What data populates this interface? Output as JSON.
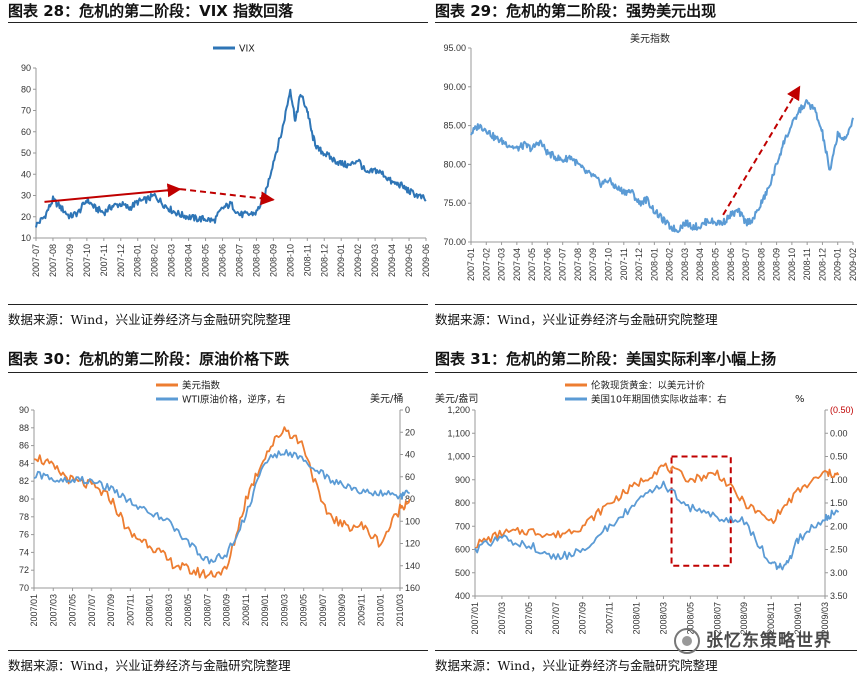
{
  "panels": [
    {
      "title": "图表 28：危机的第二阶段：VIX 指数回落",
      "source": "数据来源：Wind，兴业证券经济与金融研究院整理"
    },
    {
      "title": "图表 29：危机的第二阶段：强势美元出现",
      "source": "数据来源：Wind，兴业证券经济与金融研究院整理"
    },
    {
      "title": "图表 30：危机的第二阶段：原油价格下跌",
      "source": "数据来源：Wind，兴业证券经济与金融研究院整理"
    },
    {
      "title": "图表 31：危机的第二阶段：美国实际利率小幅上扬",
      "source": "数据来源：Wind，兴业证券经济与金融研究院整理"
    }
  ],
  "watermark": "张忆东策略世界",
  "chart_data": [
    {
      "type": "line",
      "legend": [
        "VIX"
      ],
      "y_ticks": [
        "10",
        "20",
        "30",
        "40",
        "50",
        "60",
        "70",
        "80",
        "90"
      ],
      "ylim": [
        10,
        90
      ],
      "x_ticks": [
        "2007-07",
        "2007-08",
        "2007-09",
        "2007-10",
        "2007-11",
        "2007-12",
        "2008-01",
        "2008-02",
        "2008-03",
        "2008-04",
        "2008-05",
        "2008-06",
        "2008-07",
        "2008-08",
        "2008-09",
        "2008-10",
        "2008-11",
        "2008-12",
        "2009-01",
        "2009-02",
        "2009-03",
        "2009-04",
        "2009-05",
        "2009-06"
      ],
      "series": [
        {
          "name": "VIX",
          "color": "#2e75b6",
          "x": [
            0,
            0.5,
            1,
            1.5,
            2,
            2.5,
            3,
            3.5,
            4,
            4.5,
            5,
            5.5,
            6,
            6.5,
            7,
            7.5,
            8,
            8.5,
            9,
            9.5,
            10,
            10.5,
            11,
            11.5,
            12,
            12.5,
            13,
            13.5,
            14,
            14.5,
            15,
            15.3,
            15.6,
            16,
            16.3,
            16.6,
            17,
            17.5,
            18,
            18.5,
            19,
            19.5,
            20,
            20.5,
            21,
            21.5,
            22,
            22.5,
            23
          ],
          "values": [
            16,
            20,
            28,
            24,
            20,
            22,
            28,
            24,
            22,
            25,
            26,
            24,
            27,
            28,
            30,
            26,
            23,
            21,
            20,
            19,
            19,
            18,
            24,
            26,
            21,
            21,
            22,
            30,
            46,
            60,
            80,
            65,
            78,
            70,
            58,
            52,
            50,
            47,
            45,
            44,
            47,
            40,
            42,
            40,
            36,
            35,
            32,
            30,
            28
          ]
        }
      ],
      "annotations": [
        {
          "type": "arrow",
          "style": "solid",
          "color": "#c00000",
          "from": [
            0.5,
            27
          ],
          "to": [
            8.5,
            33
          ]
        },
        {
          "type": "arrow",
          "style": "dashed",
          "color": "#c00000",
          "from": [
            8.5,
            33
          ],
          "to": [
            14,
            28
          ]
        }
      ]
    },
    {
      "type": "line",
      "legend": [
        "美元指数"
      ],
      "y_ticks": [
        "70.00",
        "75.00",
        "80.00",
        "85.00",
        "90.00",
        "95.00"
      ],
      "ylim": [
        70,
        95
      ],
      "x_ticks": [
        "2007-01",
        "2007-02",
        "2007-03",
        "2007-04",
        "2007-05",
        "2007-06",
        "2007-07",
        "2007-08",
        "2007-09",
        "2007-10",
        "2007-11",
        "2007-12",
        "2008-01",
        "2008-02",
        "2008-03",
        "2008-04",
        "2008-05",
        "2008-06",
        "2008-07",
        "2008-08",
        "2008-09",
        "2008-10",
        "2008-11",
        "2008-12",
        "2009-01",
        "2009-02"
      ],
      "series": [
        {
          "name": "美元指数",
          "color": "#5b9bd5",
          "x": [
            0,
            0.5,
            1,
            1.5,
            2,
            2.5,
            3,
            3.5,
            4,
            4.5,
            5,
            5.5,
            6,
            6.5,
            7,
            7.5,
            8,
            8.5,
            9,
            9.5,
            10,
            10.5,
            11,
            11.5,
            12,
            12.5,
            13,
            13.5,
            14,
            14.5,
            15,
            15.5,
            16,
            16.5,
            17,
            17.5,
            18,
            18.5,
            19,
            19.5,
            20,
            20.5,
            21,
            21.5,
            22,
            22.5,
            23,
            23.5,
            24,
            24.5,
            25
          ],
          "values": [
            84,
            85,
            84.5,
            83.5,
            83,
            82.5,
            82,
            82.5,
            82,
            83,
            81.5,
            81,
            80.5,
            81,
            80,
            79,
            78.5,
            77.5,
            78,
            77,
            76.5,
            76.5,
            75,
            75.5,
            74,
            73,
            72,
            71.5,
            72.5,
            72,
            72,
            72.8,
            72.5,
            72.5,
            73.5,
            74,
            72.5,
            73,
            75,
            77,
            80,
            83,
            85,
            87,
            88,
            87,
            84,
            79,
            84,
            83,
            86
          ]
        }
      ],
      "annotations": [
        {
          "type": "arrow",
          "style": "dashed",
          "color": "#c00000",
          "from": [
            16.5,
            73.5
          ],
          "to": [
            21.5,
            90
          ]
        }
      ]
    },
    {
      "type": "line",
      "legend": [
        "美元指数",
        "WTI原油价格，逆序，右"
      ],
      "y_left_ticks": [
        "70",
        "72",
        "74",
        "76",
        "78",
        "80",
        "82",
        "84",
        "86",
        "88",
        "90"
      ],
      "ylim_left": [
        70,
        90
      ],
      "y_right_label": "美元/桶",
      "y_right_ticks": [
        "0",
        "20",
        "40",
        "60",
        "80",
        "100",
        "120",
        "140",
        "160"
      ],
      "ylim_right": [
        0,
        160
      ],
      "y_right_inverted": true,
      "x_ticks": [
        "2007/01",
        "2007/03",
        "2007/05",
        "2007/07",
        "2007/09",
        "2007/11",
        "2008/01",
        "2008/03",
        "2008/05",
        "2008/07",
        "2008/09",
        "2008/11",
        "2009/01",
        "2009/03",
        "2009/05",
        "2009/07",
        "2009/09",
        "2009/11",
        "2010/01",
        "2010/03"
      ],
      "series": [
        {
          "name": "美元指数",
          "color": "#ed7d31",
          "x": [
            0,
            1,
            2,
            3,
            4,
            5,
            6,
            7,
            8,
            9,
            10,
            11,
            12,
            13,
            14,
            15,
            16,
            17,
            18,
            19,
            19.5
          ],
          "values": [
            85,
            83.5,
            82,
            81.5,
            80,
            76,
            75,
            73,
            72,
            71.5,
            72,
            80,
            85,
            88,
            86,
            79,
            77,
            77,
            75,
            79,
            80
          ]
        },
        {
          "name": "WTI原油价格，逆序，右",
          "color": "#5b9bd5",
          "x": [
            0,
            1,
            2,
            3,
            4,
            5,
            6,
            7,
            8,
            9,
            10,
            11,
            12,
            13,
            14,
            15,
            16,
            17,
            18,
            19,
            19.5
          ],
          "values": [
            58,
            62,
            62,
            64,
            70,
            82,
            92,
            100,
            120,
            135,
            130,
            95,
            45,
            38,
            45,
            58,
            68,
            73,
            75,
            77,
            75
          ]
        }
      ]
    },
    {
      "type": "line",
      "legend": [
        "伦敦现货黄金：以美元计价",
        "美国10年期国债实际收益率：右"
      ],
      "y_left_label": "美元/盎司",
      "y_left_ticks": [
        "400",
        "500",
        "600",
        "700",
        "800",
        "900",
        "1,000",
        "1,100",
        "1,200"
      ],
      "ylim_left": [
        400,
        1200
      ],
      "y_right_label": "%",
      "y_right_ticks": [
        "(0.50)",
        "0.00",
        "0.50",
        "1.00",
        "1.50",
        "2.00",
        "2.50",
        "3.00",
        "3.50"
      ],
      "ylim_right": [
        -0.5,
        3.5
      ],
      "y_right_inverted": true,
      "x_ticks": [
        "2007/01",
        "2007/03",
        "2007/05",
        "2007/07",
        "2007/09",
        "2007/11",
        "2008/01",
        "2008/03",
        "2008/05",
        "2008/07",
        "2008/09",
        "2008/11",
        "2009/01",
        "2009/03"
      ],
      "series": [
        {
          "name": "伦敦现货黄金：以美元计价",
          "color": "#ed7d31",
          "x": [
            0,
            1,
            2,
            3,
            4,
            5,
            6,
            7,
            8,
            9,
            10,
            11,
            12,
            13,
            13.5
          ],
          "values": [
            620,
            670,
            680,
            660,
            700,
            800,
            880,
            960,
            900,
            930,
            800,
            720,
            850,
            930,
            920
          ]
        },
        {
          "name": "美国10年期国债实际收益率：右",
          "color": "#5b9bd5",
          "x": [
            0,
            1,
            2,
            3,
            4,
            5,
            6,
            7,
            8,
            9,
            10,
            11,
            11.5,
            12,
            13,
            13.5
          ],
          "values": [
            2.5,
            2.25,
            2.4,
            2.7,
            2.5,
            2.0,
            1.5,
            1.1,
            1.6,
            1.8,
            1.9,
            2.8,
            2.9,
            2.3,
            1.8,
            1.7
          ]
        }
      ],
      "annotations": [
        {
          "type": "rect",
          "style": "dashed",
          "color": "#c00000",
          "x_range": [
            7.3,
            9.5
          ],
          "y_range": [
            530,
            1000
          ]
        }
      ]
    }
  ]
}
